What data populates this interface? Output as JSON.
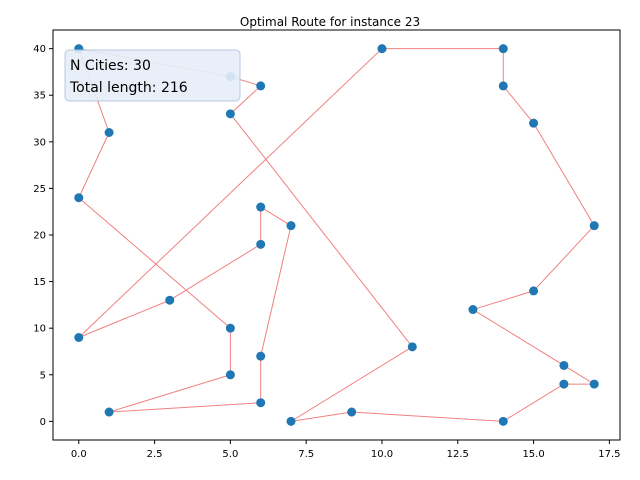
{
  "chart_data": {
    "type": "scatter",
    "title": "Optimal Route for instance 23",
    "xlabel": "",
    "ylabel": "",
    "xlim": [
      -0.85,
      17.85
    ],
    "ylim": [
      -2.0,
      42.0
    ],
    "x_ticks": [
      0.0,
      2.5,
      5.0,
      7.5,
      10.0,
      12.5,
      15.0,
      17.5
    ],
    "x_tick_labels": [
      "0.0",
      "2.5",
      "5.0",
      "7.5",
      "10.0",
      "12.5",
      "15.0",
      "17.5"
    ],
    "y_ticks": [
      0,
      5,
      10,
      15,
      20,
      25,
      30,
      35,
      40
    ],
    "y_tick_labels": [
      "0",
      "5",
      "10",
      "15",
      "20",
      "25",
      "30",
      "35",
      "40"
    ],
    "grid": false,
    "annotation": {
      "line1": "N Cities: 30",
      "line2": "Total length: 216"
    },
    "colors": {
      "point": "#1f77b4",
      "route": "#f08080",
      "annotation_bg": "#e6eef8",
      "annotation_border": "#b0c4de"
    },
    "route": [
      [
        0,
        40
      ],
      [
        5,
        37
      ],
      [
        6,
        36
      ],
      [
        5,
        33
      ],
      [
        11,
        8
      ],
      [
        7,
        0
      ],
      [
        9,
        1
      ],
      [
        14,
        0
      ],
      [
        16,
        4
      ],
      [
        17,
        4
      ],
      [
        16,
        6
      ],
      [
        13,
        12
      ],
      [
        15,
        14
      ],
      [
        17,
        21
      ],
      [
        15,
        32
      ],
      [
        14,
        36
      ],
      [
        14,
        40
      ],
      [
        10,
        40
      ],
      [
        0,
        9
      ],
      [
        3,
        13
      ],
      [
        6,
        19
      ],
      [
        6,
        23
      ],
      [
        7,
        21
      ],
      [
        6,
        7
      ],
      [
        6,
        2
      ],
      [
        1,
        1
      ],
      [
        5,
        5
      ],
      [
        5,
        10
      ],
      [
        0,
        24
      ],
      [
        1,
        31
      ],
      [
        0,
        40
      ]
    ]
  }
}
